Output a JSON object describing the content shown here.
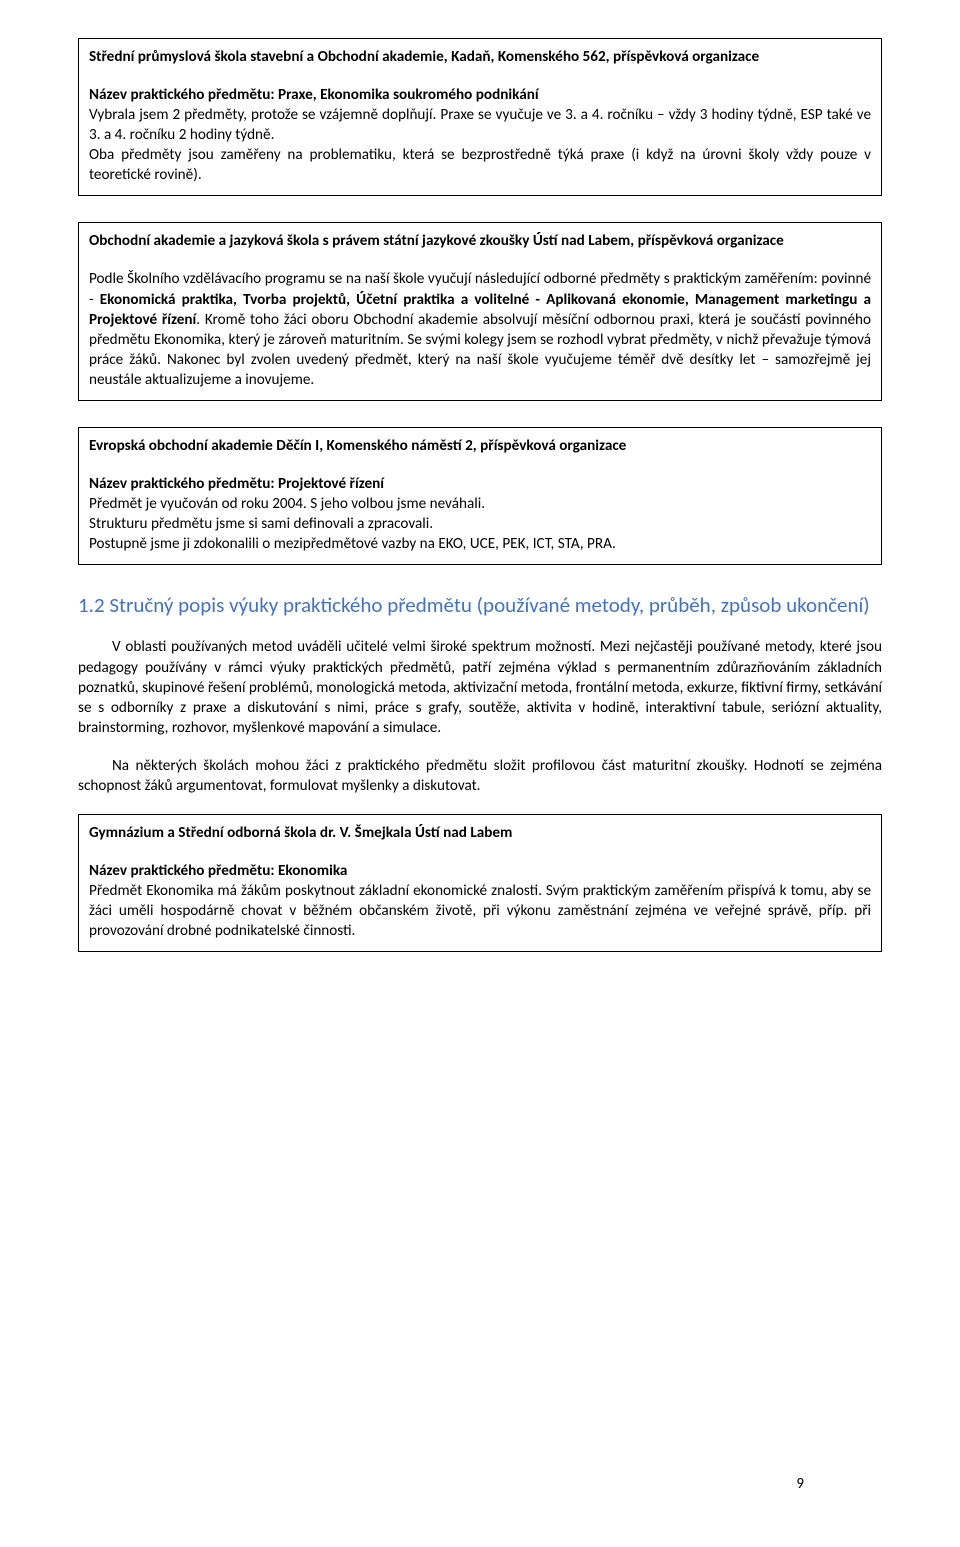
{
  "box1": {
    "title": "Střední průmyslová škola stavební a Obchodní akademie, Kadaň, Komenského 562, příspěvková organizace",
    "subj_label": "Název praktického předmětu: Praxe, Ekonomika soukromého podnikání",
    "text": "Vybrala jsem 2 předměty, protože se vzájemně doplňují. Praxe se vyučuje ve 3. a 4. ročníku – vždy 3 hodiny týdně, ESP také ve 3. a 4. ročníku 2 hodiny týdně.",
    "text2": "Oba předměty jsou zaměřeny na problematiku, která se bezprostředně týká praxe (i když na úrovni školy vždy pouze v teoretické rovině)."
  },
  "box2": {
    "title": "Obchodní akademie a jazyková škola s právem státní jazykové zkoušky Ústí nad Labem, příspěvková organizace",
    "p_pre": "Podle Školního vzdělávacího programu se na naší škole vyučují následující odborné předměty s praktickým zaměřením: povinné - ",
    "b1": "Ekonomická praktika, Tvorba projektů, Účetní praktika a volitelné - Aplikovaná ekonomie, Management marketingu a Projektové řízení",
    "p_post": ". Kromě toho žáci oboru Obchodní akademie absolvují měsíční odbornou praxi, která je součástí povinného předmětu Ekonomika, který je zároveň maturitním.  Se svými kolegy jsem se rozhodl vybrat předměty, v nichž převažuje týmová práce žáků. Nakonec byl zvolen uvedený předmět, který na naší škole vyučujeme téměř dvě desítky let – samozřejmě jej neustále aktualizujeme a inovujeme."
  },
  "box3": {
    "title": "Evropská obchodní akademie Děčín I, Komenského náměstí 2, příspěvková organizace",
    "subj_label": "Název praktického předmětu: Projektové řízení",
    "l1": "Předmět je vyučován od roku 2004. S jeho volbou jsme neváhali.",
    "l2": "Strukturu předmětu jsme si sami definovali a zpracovali.",
    "l3": "Postupně jsme ji zdokonalili o mezipředmětové vazby na EKO, UCE, PEK, ICT, STA, PRA."
  },
  "heading": "1.2 Stručný popis výuky praktického předmětu (používané metody, průběh, způsob ukončení)",
  "para1": "V oblasti používaných metod uváděli učitelé velmi široké spektrum možností. Mezi nejčastěji používané metody, které jsou pedagogy používány v rámci výuky praktických předmětů, patří zejména výklad s permanentním zdůrazňováním základních poznatků, skupinové řešení problémů, monologická metoda, aktivizační metoda, frontální metoda, exkurze, fiktivní firmy, setkávání se s odborníky z praxe a diskutování s nimi, práce s grafy, soutěže, aktivita v hodině, interaktivní tabule, seriózní aktuality, brainstorming, rozhovor, myšlenkové mapování a simulace.",
  "para2": "Na některých školách mohou žáci z praktického předmětu složit profilovou část maturitní zkoušky. Hodnotí se zejména schopnost žáků argumentovat, formulovat myšlenky a diskutovat.",
  "box4": {
    "title": "Gymnázium a Střední odborná škola dr. V. Šmejkala Ústí nad Labem",
    "subj_label": "Název praktického předmětu: Ekonomika",
    "text": "Předmět Ekonomika má žákům poskytnout základní ekonomické znalosti. Svým praktickým zaměřením přispívá k tomu, aby se žáci uměli hospodárně chovat v běžném občanském životě, při výkonu zaměstnání zejména ve veřejné správě, příp. při provozování drobné podnikatelské činnosti."
  },
  "page": "9"
}
